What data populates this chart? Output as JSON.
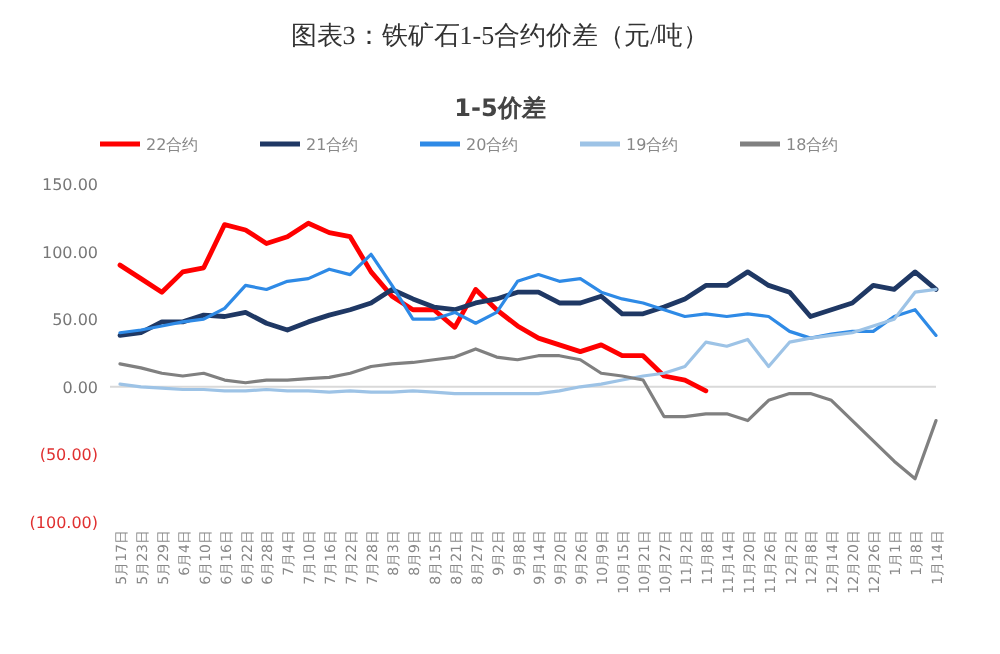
{
  "chart_data": {
    "type": "line",
    "title": "图表3：铁矿石1-5合约价差（元/吨）",
    "subtitle": "1-5价差",
    "categories": [
      "5月17日",
      "5月23日",
      "5月29日",
      "6月4日",
      "6月10日",
      "6月16日",
      "6月22日",
      "6月28日",
      "7月4日",
      "7月10日",
      "7月16日",
      "7月22日",
      "7月28日",
      "8月3日",
      "8月9日",
      "8月15日",
      "8月21日",
      "8月27日",
      "9月2日",
      "9月8日",
      "9月14日",
      "9月20日",
      "9月26日",
      "10月9日",
      "10月15日",
      "10月21日",
      "10月27日",
      "11月2日",
      "11月8日",
      "11月14日",
      "11月20日",
      "11月26日",
      "12月2日",
      "12月8日",
      "12月14日",
      "12月20日",
      "12月26日",
      "1月1日",
      "1月8日",
      "1月14日"
    ],
    "series": [
      {
        "name": "22合约",
        "color": "#ff0000",
        "values": [
          90,
          80,
          70,
          85,
          88,
          120,
          116,
          106,
          111,
          121,
          114,
          111,
          85,
          67,
          57,
          57,
          44,
          72,
          57,
          45,
          36,
          31,
          26,
          31,
          23,
          23,
          8,
          5,
          -3,
          null,
          null,
          null,
          null,
          null,
          null,
          null,
          null,
          null,
          null,
          null
        ]
      },
      {
        "name": "21合约",
        "color": "#1f3864",
        "values": [
          38,
          40,
          48,
          48,
          53,
          52,
          55,
          47,
          42,
          48,
          53,
          57,
          62,
          72,
          65,
          59,
          57,
          62,
          65,
          70,
          70,
          62,
          62,
          67,
          54,
          54,
          59,
          65,
          75,
          75,
          85,
          75,
          70,
          52,
          57,
          62,
          75,
          72,
          85,
          72
        ]
      },
      {
        "name": "20合约",
        "color": "#2e8ae6",
        "values": [
          40,
          42,
          45,
          48,
          50,
          58,
          75,
          72,
          78,
          80,
          87,
          83,
          98,
          75,
          50,
          50,
          55,
          47,
          55,
          78,
          83,
          78,
          80,
          70,
          65,
          62,
          57,
          52,
          54,
          52,
          54,
          52,
          41,
          36,
          39,
          41,
          41,
          52,
          57,
          38
        ]
      },
      {
        "name": "19合约",
        "color": "#9dc3e6",
        "values": [
          2,
          0,
          -1,
          -2,
          -2,
          -3,
          -3,
          -2,
          -3,
          -3,
          -4,
          -3,
          -4,
          -4,
          -3,
          -4,
          -5,
          -5,
          -5,
          -5,
          -5,
          -3,
          0,
          2,
          5,
          8,
          10,
          15,
          33,
          30,
          35,
          15,
          33,
          36,
          38,
          40,
          45,
          50,
          70,
          72
        ]
      },
      {
        "name": "18合约",
        "color": "#808080",
        "values": [
          17,
          14,
          10,
          8,
          10,
          5,
          3,
          5,
          5,
          6,
          7,
          10,
          15,
          17,
          18,
          20,
          22,
          28,
          22,
          20,
          23,
          23,
          20,
          10,
          8,
          5,
          -22,
          -22,
          -20,
          -20,
          -25,
          -10,
          -5,
          -5,
          -10,
          -25,
          -40,
          -55,
          -68,
          -25
        ]
      }
    ],
    "ylim": [
      -100,
      150
    ],
    "yticks": [
      {
        "value": -100,
        "label": "(100.00)"
      },
      {
        "value": -50,
        "label": "(50.00)"
      },
      {
        "value": 0,
        "label": "0.00"
      },
      {
        "value": 50,
        "label": "50.00"
      },
      {
        "value": 100,
        "label": "100.00"
      },
      {
        "value": 150,
        "label": "150.00"
      }
    ],
    "ref_lines": [
      {
        "axis": "y",
        "value": 0,
        "color": "#d9d9d9"
      }
    ],
    "legend": "top",
    "grid": false,
    "marker": "none",
    "line_style": "solid"
  }
}
